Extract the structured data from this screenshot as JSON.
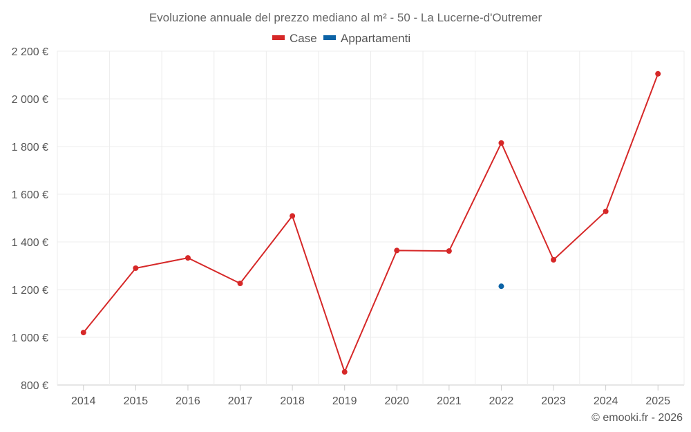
{
  "chart_data": {
    "type": "line",
    "title": "Evoluzione annuale del prezzo mediano al m² - 50 - La Lucerne-d'Outremer",
    "categories": [
      "2014",
      "2015",
      "2016",
      "2017",
      "2018",
      "2019",
      "2020",
      "2021",
      "2022",
      "2023",
      "2024",
      "2025"
    ],
    "y_ticks": [
      800,
      1000,
      1200,
      1400,
      1600,
      1800,
      2000,
      2200
    ],
    "y_tick_labels": [
      "800 €",
      "1 000 €",
      "1 200 €",
      "1 400 €",
      "1 600 €",
      "1 800 €",
      "2 000 €",
      "2 200 €"
    ],
    "ylim": [
      800,
      2200
    ],
    "grid": true,
    "legend_position": "top-center",
    "series": [
      {
        "name": "Case",
        "color": "#d62828",
        "values": [
          1020,
          1290,
          1333,
          1226,
          1509,
          855,
          1364,
          1362,
          1815,
          1325,
          1528,
          2105
        ]
      },
      {
        "name": "Appartamenti",
        "color": "#0b63a6",
        "values": [
          null,
          null,
          null,
          null,
          null,
          null,
          null,
          null,
          1214,
          null,
          null,
          null
        ]
      }
    ],
    "credit": "© emooki.fr - 2026"
  }
}
